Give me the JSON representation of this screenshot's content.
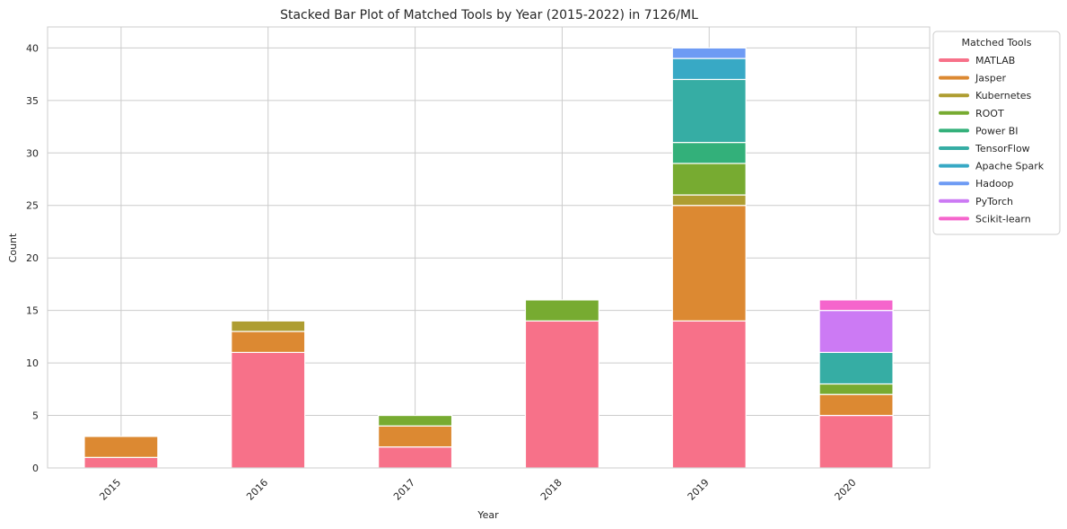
{
  "chart_data": {
    "type": "bar",
    "stacked": true,
    "title": "Stacked Bar Plot of Matched Tools by Year (2015-2022) in 7126/ML",
    "xlabel": "Year",
    "ylabel": "Count",
    "ylim": [
      0,
      42
    ],
    "yticks": [
      0,
      5,
      10,
      15,
      20,
      25,
      30,
      35,
      40
    ],
    "grid": true,
    "categories": [
      "2015",
      "2016",
      "2017",
      "2018",
      "2019",
      "2020"
    ],
    "legend": {
      "title": "Matched Tools",
      "placement": "outside-top-right"
    },
    "series": [
      {
        "name": "MATLAB",
        "color": "#f77189",
        "values": [
          1,
          11,
          2,
          14,
          14,
          5
        ]
      },
      {
        "name": "Jasper",
        "color": "#dc8932",
        "values": [
          2,
          2,
          2,
          0,
          11,
          2
        ]
      },
      {
        "name": "Kubernetes",
        "color": "#ae9d31",
        "values": [
          0,
          1,
          0,
          0,
          1,
          0
        ]
      },
      {
        "name": "ROOT",
        "color": "#77ab31",
        "values": [
          0,
          0,
          1,
          2,
          3,
          1
        ]
      },
      {
        "name": "Power BI",
        "color": "#33b07a",
        "values": [
          0,
          0,
          0,
          0,
          2,
          0
        ]
      },
      {
        "name": "TensorFlow",
        "color": "#36ada4",
        "values": [
          0,
          0,
          0,
          0,
          6,
          3
        ]
      },
      {
        "name": "Apache Spark",
        "color": "#38a9c5",
        "values": [
          0,
          0,
          0,
          0,
          2,
          0
        ]
      },
      {
        "name": "Hadoop",
        "color": "#6e9bf4",
        "values": [
          0,
          0,
          0,
          0,
          1,
          0
        ]
      },
      {
        "name": "PyTorch",
        "color": "#cc7af4",
        "values": [
          0,
          0,
          0,
          0,
          0,
          4
        ]
      },
      {
        "name": "Scikit-learn",
        "color": "#f565cc",
        "values": [
          0,
          0,
          0,
          0,
          0,
          1
        ]
      }
    ]
  }
}
